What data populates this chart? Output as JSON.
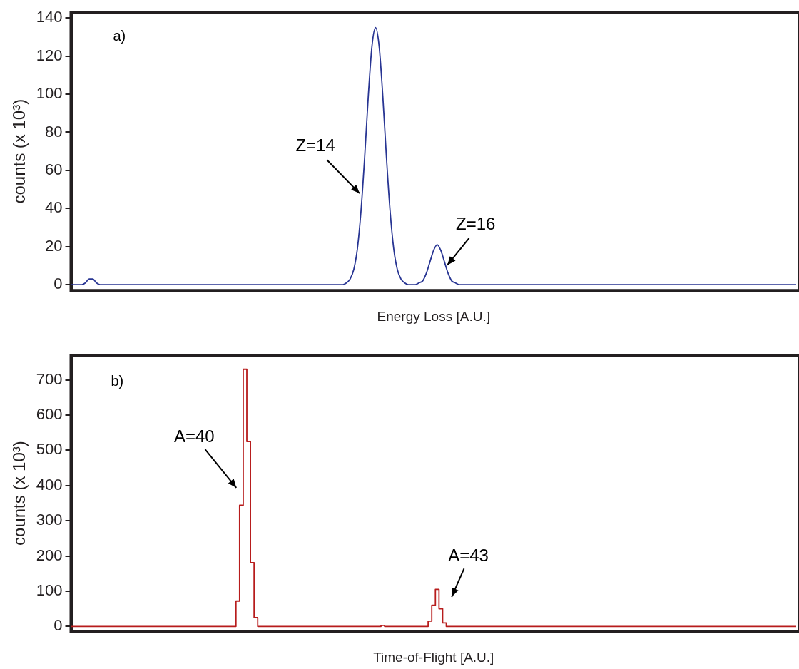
{
  "chart_data": [
    {
      "type": "line",
      "xlabel": "Energy Loss [A.U.]",
      "ylabel": "counts (x 10³)",
      "color": "#283593",
      "ylim": [
        -3,
        143
      ],
      "yticks": [
        0,
        20,
        40,
        60,
        80,
        100,
        120,
        140
      ],
      "annotations": [
        "a)",
        "Z=14",
        "Z=16"
      ],
      "categories": [
        null,
        null,
        null,
        null,
        null,
        null,
        null,
        null,
        null,
        null,
        null,
        null,
        null,
        null,
        null,
        null,
        null,
        null,
        null,
        null,
        null,
        null,
        null,
        null,
        null,
        null,
        null,
        null,
        null,
        null,
        null,
        null,
        null,
        null,
        null,
        null,
        null,
        null,
        null,
        null,
        null,
        null,
        null,
        null,
        null,
        null,
        null,
        null,
        null,
        null,
        null,
        null,
        null,
        null,
        null,
        null,
        null,
        null,
        null,
        null,
        null,
        null,
        null,
        null,
        null,
        null,
        null,
        null,
        null,
        null,
        null,
        null,
        null,
        null,
        null,
        null,
        null,
        null,
        null,
        null,
        null,
        null,
        null,
        null,
        null,
        null,
        null,
        null,
        null,
        null,
        null,
        null,
        null,
        null,
        null,
        null,
        null,
        null,
        null,
        null,
        null,
        null,
        null,
        null,
        null,
        null,
        null,
        null,
        null,
        null,
        null,
        null,
        null,
        null,
        null,
        null,
        null,
        null,
        null,
        null,
        null,
        null,
        null,
        null,
        null,
        null,
        null,
        null,
        null,
        null,
        null,
        null,
        null,
        null,
        null,
        null,
        null,
        null,
        null,
        null,
        null,
        null,
        null,
        null,
        null,
        null,
        null,
        null,
        null,
        null,
        null,
        null,
        null,
        null,
        null,
        null,
        null,
        null,
        null,
        null,
        null,
        null,
        null,
        null,
        null,
        null,
        null,
        null,
        null,
        null,
        null,
        null,
        null,
        null,
        null,
        null,
        null,
        null,
        null,
        null,
        null,
        null,
        null,
        null,
        null,
        null,
        null,
        null,
        null,
        null,
        null,
        null,
        null,
        null,
        null,
        null,
        null,
        null,
        null,
        null,
        null
      ],
      "values": [
        0,
        0,
        0,
        0,
        1,
        3,
        3,
        1,
        0,
        0,
        0,
        0,
        0,
        0,
        0,
        0,
        0,
        0,
        0,
        0,
        0,
        0,
        0,
        0,
        0,
        0,
        0,
        0,
        0,
        0,
        0,
        0,
        0,
        0,
        0,
        0,
        0,
        0,
        0,
        0,
        0,
        0,
        0,
        0,
        0,
        0,
        0,
        0,
        0,
        0,
        0,
        0,
        0,
        0,
        0,
        0,
        0,
        0,
        0,
        0,
        0,
        0,
        0,
        0,
        0,
        0,
        0,
        0,
        0,
        0,
        0,
        0,
        0,
        0,
        0,
        0,
        1,
        3,
        8,
        19,
        39,
        67,
        99,
        125,
        135,
        125,
        99,
        67,
        39,
        19,
        8,
        3,
        1,
        0,
        0,
        0,
        1,
        2,
        6,
        12,
        18,
        21,
        18,
        12,
        6,
        2,
        1,
        0,
        0,
        0,
        0,
        0,
        0,
        0,
        0,
        0,
        0,
        0,
        0,
        0,
        0,
        0,
        0,
        0,
        0,
        0,
        0,
        0,
        0,
        0,
        0,
        0,
        0,
        0,
        0,
        0,
        0,
        0,
        0,
        0,
        0,
        0,
        0,
        0,
        0,
        0,
        0,
        0,
        0,
        0,
        0,
        0,
        0,
        0,
        0,
        0,
        0,
        0,
        0,
        0,
        0,
        0,
        0,
        0,
        0,
        0,
        0,
        0,
        0,
        0,
        0,
        0,
        0,
        0,
        0,
        0,
        0,
        0,
        0,
        0,
        0,
        0,
        0,
        0,
        0,
        0,
        0,
        0,
        0,
        0,
        0,
        0,
        0,
        0,
        0,
        0,
        0,
        0,
        0,
        0,
        0
      ]
    },
    {
      "type": "step",
      "xlabel": "Time-of-Flight [A.U.]",
      "ylabel": "counts (x 10³)",
      "color": "#b71c1c",
      "ylim": [
        -14,
        770
      ],
      "yticks": [
        0,
        100,
        200,
        300,
        400,
        500,
        600,
        700
      ],
      "annotations": [
        "b)",
        "A=40",
        "A=43"
      ],
      "categories": [
        null,
        null,
        null,
        null,
        null,
        null,
        null,
        null,
        null,
        null,
        null,
        null,
        null,
        null,
        null,
        null,
        null,
        null,
        null,
        null,
        null,
        null,
        null,
        null,
        null,
        null,
        null,
        null,
        null,
        null,
        null,
        null,
        null,
        null,
        null,
        null,
        null,
        null,
        null,
        null,
        null,
        null,
        null,
        null,
        null,
        null,
        null,
        null,
        null,
        null,
        null,
        null,
        null,
        null,
        null,
        null,
        null,
        null,
        null,
        null,
        null,
        null,
        null,
        null,
        null,
        null,
        null,
        null,
        null,
        null,
        null,
        null,
        null,
        null,
        null,
        null,
        null,
        null,
        null,
        null,
        null,
        null,
        null,
        null,
        null,
        null,
        null,
        null,
        null,
        null,
        null,
        null,
        null,
        null,
        null,
        null,
        null,
        null,
        null,
        null,
        null,
        null,
        null,
        null,
        null,
        null,
        null,
        null,
        null,
        null,
        null,
        null,
        null,
        null,
        null,
        null,
        null,
        null,
        null,
        null,
        null,
        null,
        null,
        null,
        null,
        null,
        null,
        null,
        null,
        null,
        null,
        null,
        null,
        null,
        null,
        null,
        null,
        null,
        null,
        null,
        null,
        null,
        null,
        null,
        null,
        null,
        null,
        null,
        null,
        null,
        null,
        null,
        null,
        null,
        null,
        null,
        null,
        null,
        null,
        null,
        null,
        null,
        null,
        null,
        null,
        null,
        null,
        null,
        null,
        null,
        null,
        null,
        null,
        null,
        null,
        null,
        null,
        null,
        null,
        null,
        null,
        null,
        null,
        null,
        null,
        null,
        null,
        null,
        null,
        null,
        null,
        null,
        null,
        null,
        null,
        null,
        null,
        null,
        null,
        null,
        null
      ],
      "values": [
        0,
        0,
        0,
        0,
        0,
        0,
        0,
        0,
        0,
        0,
        0,
        0,
        0,
        0,
        0,
        0,
        0,
        0,
        0,
        0,
        0,
        0,
        0,
        0,
        0,
        0,
        0,
        0,
        0,
        0,
        0,
        0,
        0,
        0,
        0,
        0,
        0,
        0,
        0,
        0,
        0,
        0,
        0,
        0,
        0,
        0,
        72,
        344,
        730,
        525,
        181,
        25,
        0,
        0,
        0,
        0,
        0,
        0,
        0,
        0,
        0,
        0,
        0,
        0,
        0,
        0,
        0,
        0,
        0,
        0,
        0,
        0,
        0,
        0,
        0,
        0,
        0,
        0,
        0,
        0,
        0,
        0,
        0,
        0,
        0,
        0,
        3,
        0,
        0,
        0,
        0,
        0,
        0,
        0,
        0,
        0,
        0,
        0,
        0,
        15,
        60,
        105,
        50,
        10,
        0,
        0,
        0,
        0,
        0,
        0,
        0,
        0,
        0,
        0,
        0,
        0,
        0,
        0,
        0,
        0,
        0,
        0,
        0,
        0,
        0,
        0,
        0,
        0,
        0,
        0,
        0,
        0,
        0,
        0,
        0,
        0,
        0,
        0,
        0,
        0,
        0,
        0,
        0,
        0,
        0,
        0,
        0,
        0,
        0,
        0,
        0,
        0,
        0,
        0,
        0,
        0,
        0,
        0,
        0,
        0,
        0,
        0,
        0,
        0,
        0,
        0,
        0,
        0,
        0,
        0,
        0,
        0,
        0,
        0,
        0,
        0,
        0,
        0,
        0,
        0,
        0,
        0,
        0,
        0,
        0,
        0,
        0,
        0,
        0,
        0,
        0,
        0,
        0,
        0,
        0,
        0,
        0,
        0,
        0,
        0,
        0
      ]
    }
  ]
}
